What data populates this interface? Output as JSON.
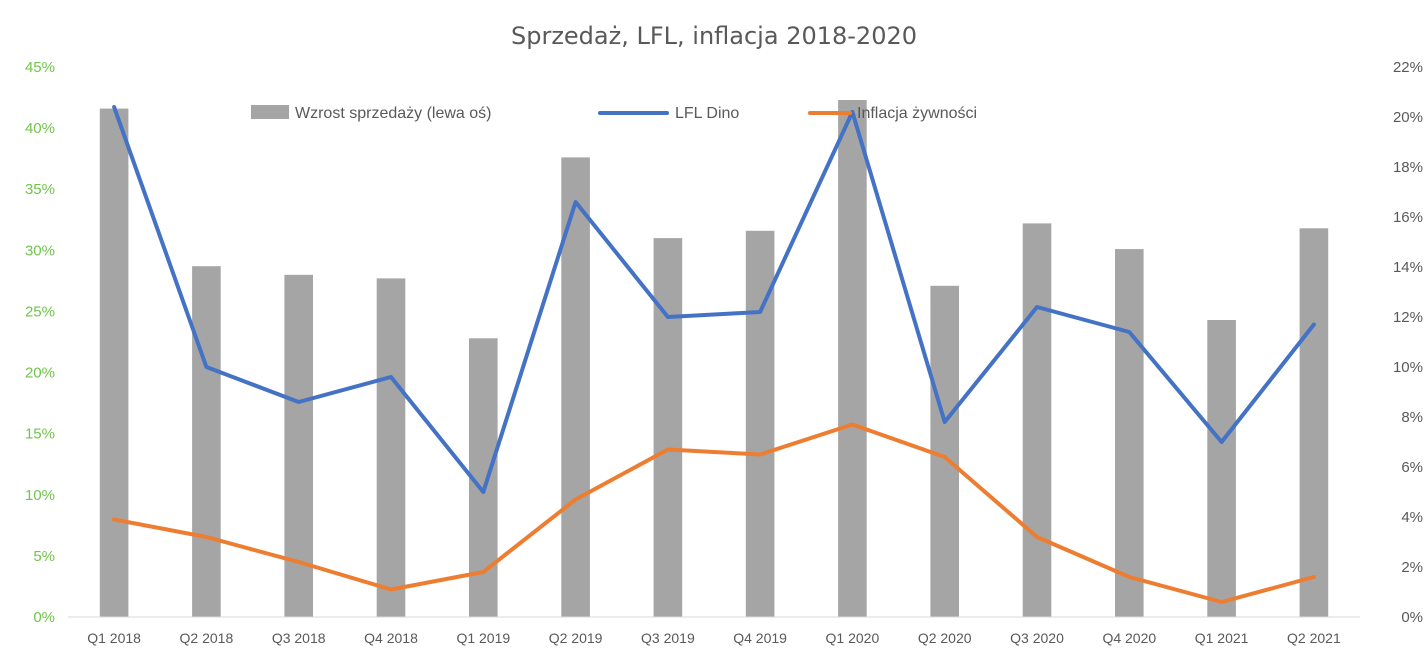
{
  "chart_data": {
    "type": "bar",
    "title": "Sprzedaż, LFL, inflacja 2018-2020",
    "categories": [
      "Q1 2018",
      "Q2 2018",
      "Q3 2018",
      "Q4 2018",
      "Q1 2019",
      "Q2 2019",
      "Q3 2019",
      "Q4 2019",
      "Q1 2020",
      "Q2 2020",
      "Q3 2020",
      "Q4 2020",
      "Q1 2021",
      "Q2 2021"
    ],
    "series": [
      {
        "name": "Wzrost sprzedaży (lewa oś)",
        "kind": "bar",
        "axis": "left",
        "color": "#a5a5a5",
        "values": [
          41.6,
          28.7,
          28.0,
          27.7,
          22.8,
          37.6,
          31.0,
          31.6,
          42.3,
          27.1,
          32.2,
          30.1,
          24.3,
          31.8
        ]
      },
      {
        "name": "LFL Dino",
        "kind": "line",
        "axis": "right",
        "color": "#4472c4",
        "values": [
          20.4,
          10.0,
          8.6,
          9.6,
          5.0,
          16.6,
          12.0,
          12.2,
          20.2,
          7.8,
          12.4,
          11.4,
          7.0,
          11.7
        ]
      },
      {
        "name": "Inflacja żywności",
        "kind": "line",
        "axis": "right",
        "color": "#ed7d31",
        "values": [
          3.9,
          3.2,
          2.2,
          1.1,
          1.8,
          4.7,
          6.7,
          6.5,
          7.7,
          6.4,
          3.2,
          1.6,
          0.6,
          1.6
        ]
      }
    ],
    "y_left": {
      "min": 0,
      "max": 45,
      "step": 5,
      "ticks": [
        "0%",
        "5%",
        "10%",
        "15%",
        "20%",
        "25%",
        "30%",
        "35%",
        "40%",
        "45%"
      ],
      "tick_color": "#70c54a"
    },
    "y_right": {
      "min": 0,
      "max": 22,
      "step": 2,
      "ticks": [
        "0%",
        "2%",
        "4%",
        "6%",
        "8%",
        "10%",
        "12%",
        "14%",
        "16%",
        "18%",
        "20%",
        "22%"
      ],
      "tick_color": "#595959"
    },
    "grid": false,
    "legend_position": "top"
  }
}
